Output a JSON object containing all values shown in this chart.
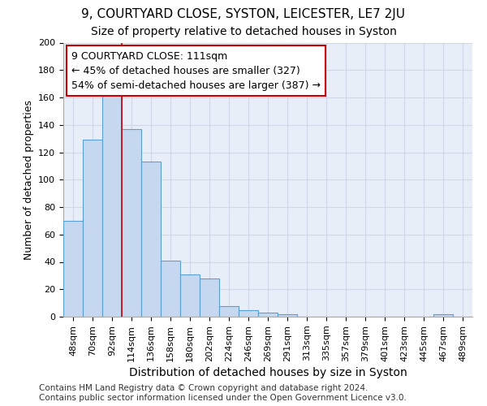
{
  "title": "9, COURTYARD CLOSE, SYSTON, LEICESTER, LE7 2JU",
  "subtitle": "Size of property relative to detached houses in Syston",
  "xlabel": "Distribution of detached houses by size in Syston",
  "ylabel": "Number of detached properties",
  "bar_color": "#c5d8f0",
  "bar_edge_color": "#5a9fd4",
  "categories": [
    "48sqm",
    "70sqm",
    "92sqm",
    "114sqm",
    "136sqm",
    "158sqm",
    "180sqm",
    "202sqm",
    "224sqm",
    "246sqm",
    "269sqm",
    "291sqm",
    "313sqm",
    "335sqm",
    "357sqm",
    "379sqm",
    "401sqm",
    "423sqm",
    "445sqm",
    "467sqm",
    "489sqm"
  ],
  "values": [
    70,
    129,
    163,
    137,
    113,
    41,
    31,
    28,
    8,
    5,
    3,
    2,
    0,
    0,
    0,
    0,
    0,
    0,
    0,
    2,
    0
  ],
  "vline_x": 2.5,
  "annotation_text": "9 COURTYARD CLOSE: 111sqm\n← 45% of detached houses are smaller (327)\n54% of semi-detached houses are larger (387) →",
  "annotation_box_color": "#ffffff",
  "annotation_box_edge_color": "#cc0000",
  "vline_color": "#cc0000",
  "ylim": [
    0,
    200
  ],
  "yticks": [
    0,
    20,
    40,
    60,
    80,
    100,
    120,
    140,
    160,
    180,
    200
  ],
  "grid_color": "#d0d8e8",
  "bg_color": "#e8eef7",
  "footer": "Contains HM Land Registry data © Crown copyright and database right 2024.\nContains public sector information licensed under the Open Government Licence v3.0.",
  "title_fontsize": 11,
  "subtitle_fontsize": 10,
  "xlabel_fontsize": 10,
  "ylabel_fontsize": 9,
  "tick_fontsize": 8,
  "annotation_fontsize": 9,
  "footer_fontsize": 7.5
}
